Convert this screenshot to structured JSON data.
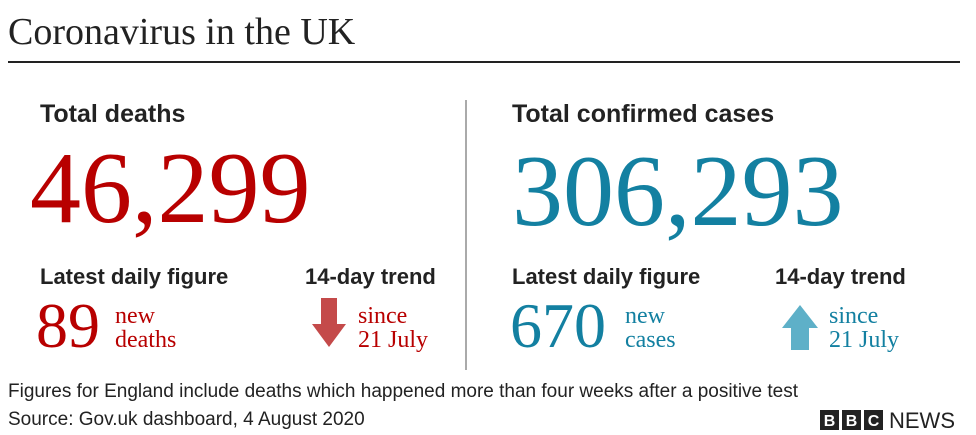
{
  "header": {
    "title": "Coronavirus in the UK"
  },
  "panels": [
    {
      "label": "Total deaths",
      "total": "46,299",
      "daily_label": "Latest daily figure",
      "daily_value": "89",
      "daily_unit": [
        "new",
        "deaths"
      ],
      "trend_label": "14-day trend",
      "trend_text": [
        "since",
        "21 July"
      ]
    },
    {
      "label": "Total confirmed cases",
      "total": "306,293",
      "daily_label": "Latest daily figure",
      "daily_value": "670",
      "daily_unit": [
        "new",
        "cases"
      ],
      "trend_label": "14-day trend",
      "trend_text": [
        "since",
        "21 July"
      ]
    }
  ],
  "footer": {
    "note": "Figures for England include deaths which happened more than four weeks after a positive test",
    "source": "Source: Gov.uk dashboard, 4 August 2020",
    "logo": {
      "blocks": [
        "B",
        "B",
        "C"
      ],
      "text": "NEWS"
    }
  }
}
